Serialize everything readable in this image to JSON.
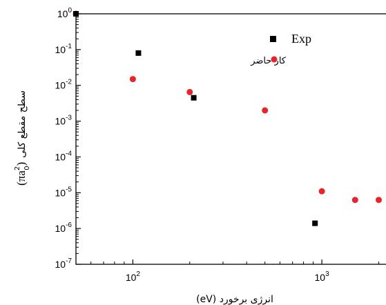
{
  "chart_data": {
    "type": "scatter",
    "xscale": "log",
    "yscale": "log",
    "xlim": [
      50,
      2500
    ],
    "ylim": [
      1e-07,
      1
    ],
    "xlabel": "انرژی برخورد (eV)",
    "ylabel_main": "سطح مقطع کلی",
    "ylabel_unit": "(πa",
    "ylabel_unit_sup": "2",
    "ylabel_unit_sub": "0",
    "ylabel_unit_close": ")",
    "x_ticks": [
      {
        "base": "10",
        "exp": "2"
      },
      {
        "base": "10",
        "exp": "3"
      }
    ],
    "y_ticks": [
      {
        "base": "10",
        "exp": "0"
      },
      {
        "base": "10",
        "exp": "-1"
      },
      {
        "base": "10",
        "exp": "-2"
      },
      {
        "base": "10",
        "exp": "-3"
      },
      {
        "base": "10",
        "exp": "-4"
      },
      {
        "base": "10",
        "exp": "-5"
      },
      {
        "base": "10",
        "exp": "-6"
      },
      {
        "base": "10",
        "exp": "-7"
      }
    ],
    "legend_placement": "top-right",
    "series": [
      {
        "name": "Exp",
        "marker": "square",
        "color": "#000000",
        "points": [
          {
            "x": 50,
            "y": 1.0
          },
          {
            "x": 107,
            "y": 0.08
          },
          {
            "x": 210,
            "y": 0.0045
          },
          {
            "x": 920,
            "y": 1.4e-06
          }
        ]
      },
      {
        "name": "کار حاضر",
        "marker": "circle",
        "color": "#e8242a",
        "points": [
          {
            "x": 50,
            "y": 1.0
          },
          {
            "x": 100,
            "y": 0.015
          },
          {
            "x": 200,
            "y": 0.0065
          },
          {
            "x": 500,
            "y": 0.002
          },
          {
            "x": 1000,
            "y": 1.1e-05
          },
          {
            "x": 1500,
            "y": 6.3e-06
          },
          {
            "x": 2000,
            "y": 6.3e-06
          }
        ]
      }
    ]
  }
}
